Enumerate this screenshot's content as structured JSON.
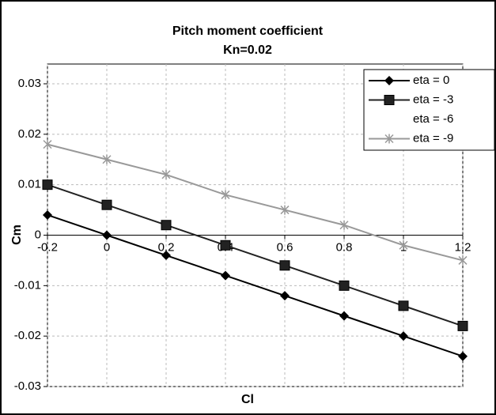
{
  "chart_data": {
    "type": "line",
    "title": "Pitch moment coefficient",
    "subtitle": "Kn=0.02",
    "x_label": "Cl",
    "y_label": "Cm",
    "x": [
      -0.2,
      0,
      0.2,
      0.4,
      0.6,
      0.8,
      1,
      1.2
    ],
    "series": [
      {
        "name": "eta = 0",
        "color": "#000000",
        "marker": "diamond",
        "values": [
          0.004,
          0,
          -0.004,
          -0.008,
          -0.012,
          -0.016,
          -0.02,
          -0.024
        ]
      },
      {
        "name": "eta = -3",
        "color": "#222222",
        "marker": "square",
        "values": [
          0.01,
          0.006,
          0.002,
          -0.002,
          -0.006,
          -0.01,
          -0.014,
          -0.018
        ]
      },
      {
        "name": "eta = -6",
        "values": [
          null,
          null,
          null,
          null,
          null,
          null,
          null,
          null
        ]
      },
      {
        "name": "eta = -9",
        "color": "#999999",
        "marker": "star",
        "values": [
          0.018,
          0.015,
          0.012,
          0.008,
          0.005,
          0.002,
          -0.002,
          -0.005
        ]
      }
    ],
    "xlim": [
      -0.2,
      1.2
    ],
    "xticks": [
      -0.2,
      0,
      0.2,
      0.4,
      0.6,
      0.8,
      1,
      1.2
    ],
    "ylim": [
      -0.03,
      0.03
    ],
    "yticks": [
      -0.03,
      -0.02,
      -0.01,
      0,
      0.01,
      0.02,
      0.03
    ],
    "grid": true,
    "legend": "top-right"
  }
}
